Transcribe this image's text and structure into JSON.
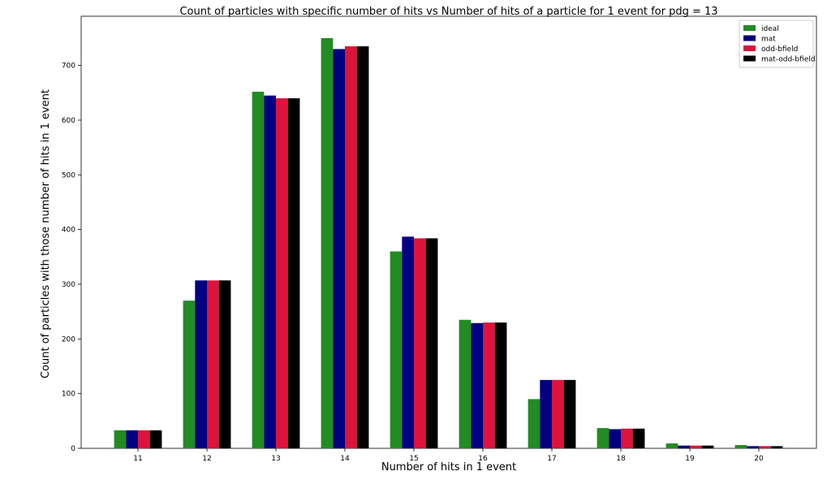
{
  "chart_data": {
    "type": "bar",
    "title": "Count of particles with specific number of hits vs Number of hits of a particle for 1 event for pdg = 13",
    "xlabel": "Number of hits in 1 event",
    "ylabel": "Count of particles with those number of hits in 1 event",
    "categories": [
      "11",
      "12",
      "13",
      "14",
      "15",
      "16",
      "17",
      "18",
      "19",
      "20"
    ],
    "ylim": [
      0,
      790
    ],
    "yticks": [
      0,
      100,
      200,
      300,
      400,
      500,
      600,
      700
    ],
    "legend_position": "top-right",
    "grid": false,
    "series": [
      {
        "name": "ideal",
        "color": "#228b22",
        "values": [
          33,
          270,
          652,
          750,
          360,
          235,
          90,
          37,
          9,
          6
        ]
      },
      {
        "name": "mat",
        "color": "#000080",
        "values": [
          33,
          307,
          645,
          730,
          387,
          229,
          125,
          35,
          5,
          4
        ]
      },
      {
        "name": "odd-bfield",
        "color": "#dc143c",
        "values": [
          33,
          307,
          640,
          735,
          384,
          230,
          125,
          36,
          5,
          4
        ]
      },
      {
        "name": "mat-odd-bfield",
        "color": "#000000",
        "values": [
          33,
          307,
          640,
          735,
          384,
          230,
          125,
          36,
          5,
          4
        ]
      }
    ]
  }
}
